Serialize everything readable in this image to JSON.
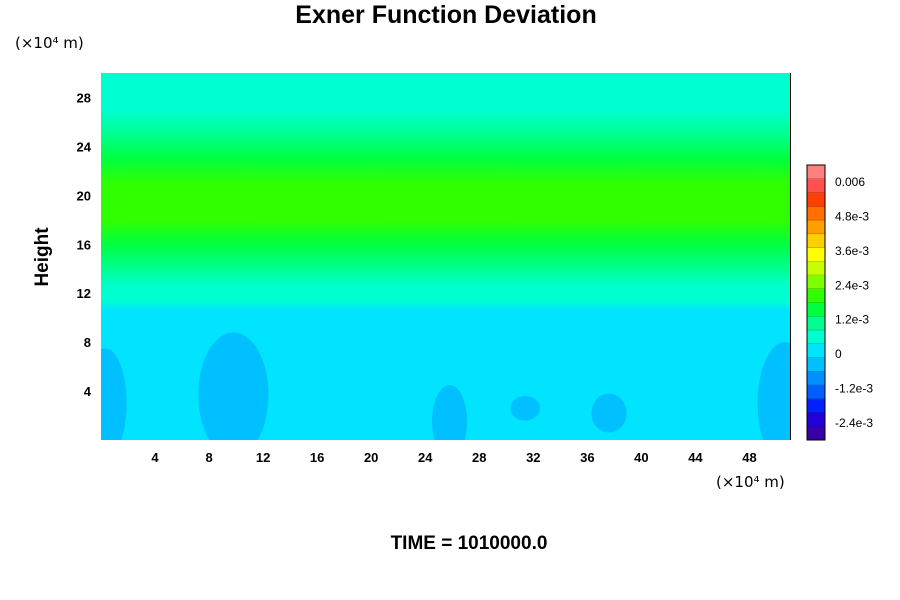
{
  "chart_data": {
    "type": "heatmap",
    "title": "Exner Function Deviation",
    "time_label": "TIME = 1010000.0",
    "ylabel": "Height",
    "xunit": "(×10⁴ m)",
    "yunit": "(×10⁴ m)",
    "xlim": [
      0,
      51
    ],
    "ylim": [
      0,
      30
    ],
    "x_ticks": [
      4,
      8,
      12,
      16,
      20,
      24,
      28,
      32,
      36,
      40,
      44,
      48
    ],
    "y_ticks": [
      4,
      8,
      12,
      16,
      20,
      24,
      28
    ],
    "colorbar": {
      "range": [
        -0.003,
        0.0066
      ],
      "tick_values": [
        0.006,
        0.0048,
        0.0036,
        0.0024,
        0.0012,
        0,
        -0.0012,
        -0.0024
      ],
      "tick_labels": [
        "0.006",
        "4.8e-3",
        "3.6e-3",
        "2.4e-3",
        "1.2e-3",
        "0",
        "-1.2e-3",
        "-2.4e-3"
      ],
      "colors": [
        "#3a00a8",
        "#2200d8",
        "#0020ff",
        "#0060ff",
        "#0090ff",
        "#00c0ff",
        "#00e4ff",
        "#00ffd0",
        "#00ff90",
        "#00ff40",
        "#30ff00",
        "#80ff00",
        "#c8ff00",
        "#ffff00",
        "#ffd000",
        "#ffa000",
        "#ff7000",
        "#ff4000",
        "#ff5050",
        "#ff8080"
      ]
    },
    "field_profile": {
      "height": [
        0,
        10.5,
        11.5,
        12.5,
        14,
        16,
        18,
        19.5,
        21,
        23,
        25,
        27,
        30
      ],
      "value": [
        0,
        0,
        0.0004,
        0.0008,
        0.0012,
        0.0016,
        0.002,
        0.0022,
        0.002,
        0.0016,
        0.0012,
        0.0008,
        0.0005
      ]
    },
    "negative_cells": [
      {
        "x": 0.3,
        "y": 3.0,
        "rx": 1.6,
        "ry": 4.5,
        "value": -0.0004
      },
      {
        "x": 9.8,
        "y": 3.7,
        "rx": 2.6,
        "ry": 5.1,
        "value": -0.0004
      },
      {
        "x": 25.8,
        "y": 1.5,
        "rx": 1.3,
        "ry": 3.0,
        "value": -0.0004
      },
      {
        "x": 31.4,
        "y": 2.6,
        "rx": 1.1,
        "ry": 1.0,
        "value": -0.0004
      },
      {
        "x": 37.6,
        "y": 2.2,
        "rx": 1.3,
        "ry": 1.6,
        "value": -0.0004
      },
      {
        "x": 50.6,
        "y": 3.0,
        "rx": 2.0,
        "ry": 5.0,
        "value": -0.0004
      }
    ]
  }
}
